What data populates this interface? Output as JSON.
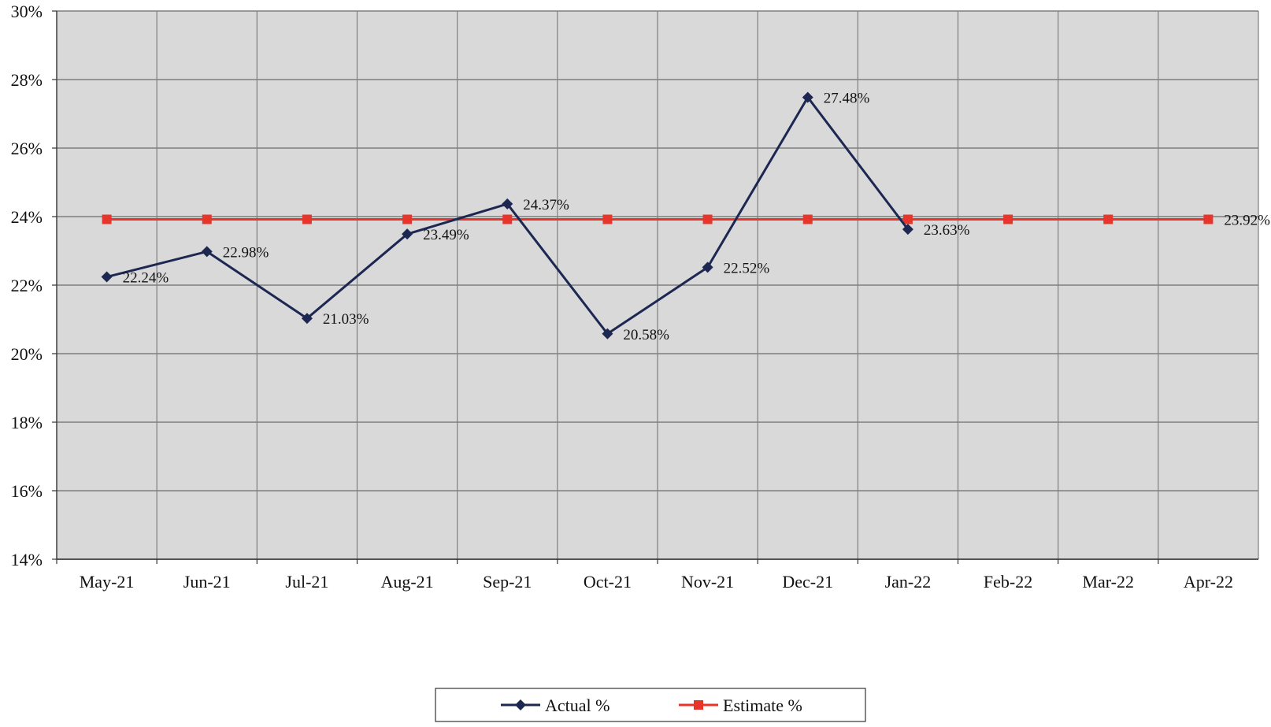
{
  "chart_data": {
    "type": "line",
    "title": "",
    "xlabel": "",
    "ylabel": "",
    "categories": [
      "May-21",
      "Jun-21",
      "Jul-21",
      "Aug-21",
      "Sep-21",
      "Oct-21",
      "Nov-21",
      "Dec-21",
      "Jan-22",
      "Feb-22",
      "Mar-22",
      "Apr-22"
    ],
    "ylim": [
      14,
      30
    ],
    "y_ticks": [
      14,
      16,
      18,
      20,
      22,
      24,
      26,
      28,
      30
    ],
    "y_tick_labels": [
      "14%",
      "16%",
      "18%",
      "20%",
      "22%",
      "24%",
      "26%",
      "28%",
      "30%"
    ],
    "grid": true,
    "legend_position": "bottom",
    "series": [
      {
        "name": "Actual %",
        "color": "#1c2752",
        "marker": "diamond",
        "values": [
          22.24,
          22.98,
          21.03,
          23.49,
          24.37,
          20.58,
          22.52,
          27.48,
          23.63,
          null,
          null,
          null
        ],
        "labels": [
          "22.24%",
          "22.98%",
          "21.03%",
          "23.49%",
          "24.37%",
          "20.58%",
          "22.52%",
          "27.48%",
          "23.63%",
          "",
          "",
          ""
        ]
      },
      {
        "name": "Estimate %",
        "color": "#e8352c",
        "marker": "square",
        "values": [
          23.92,
          23.92,
          23.92,
          23.92,
          23.92,
          23.92,
          23.92,
          23.92,
          23.92,
          23.92,
          23.92,
          23.92
        ],
        "labels": [
          "",
          "",
          "",
          "",
          "",
          "",
          "",
          "",
          "",
          "",
          "",
          "23.92%"
        ]
      }
    ],
    "plot_background": "#d9d9d9",
    "grid_color": "#7f7f7f"
  }
}
